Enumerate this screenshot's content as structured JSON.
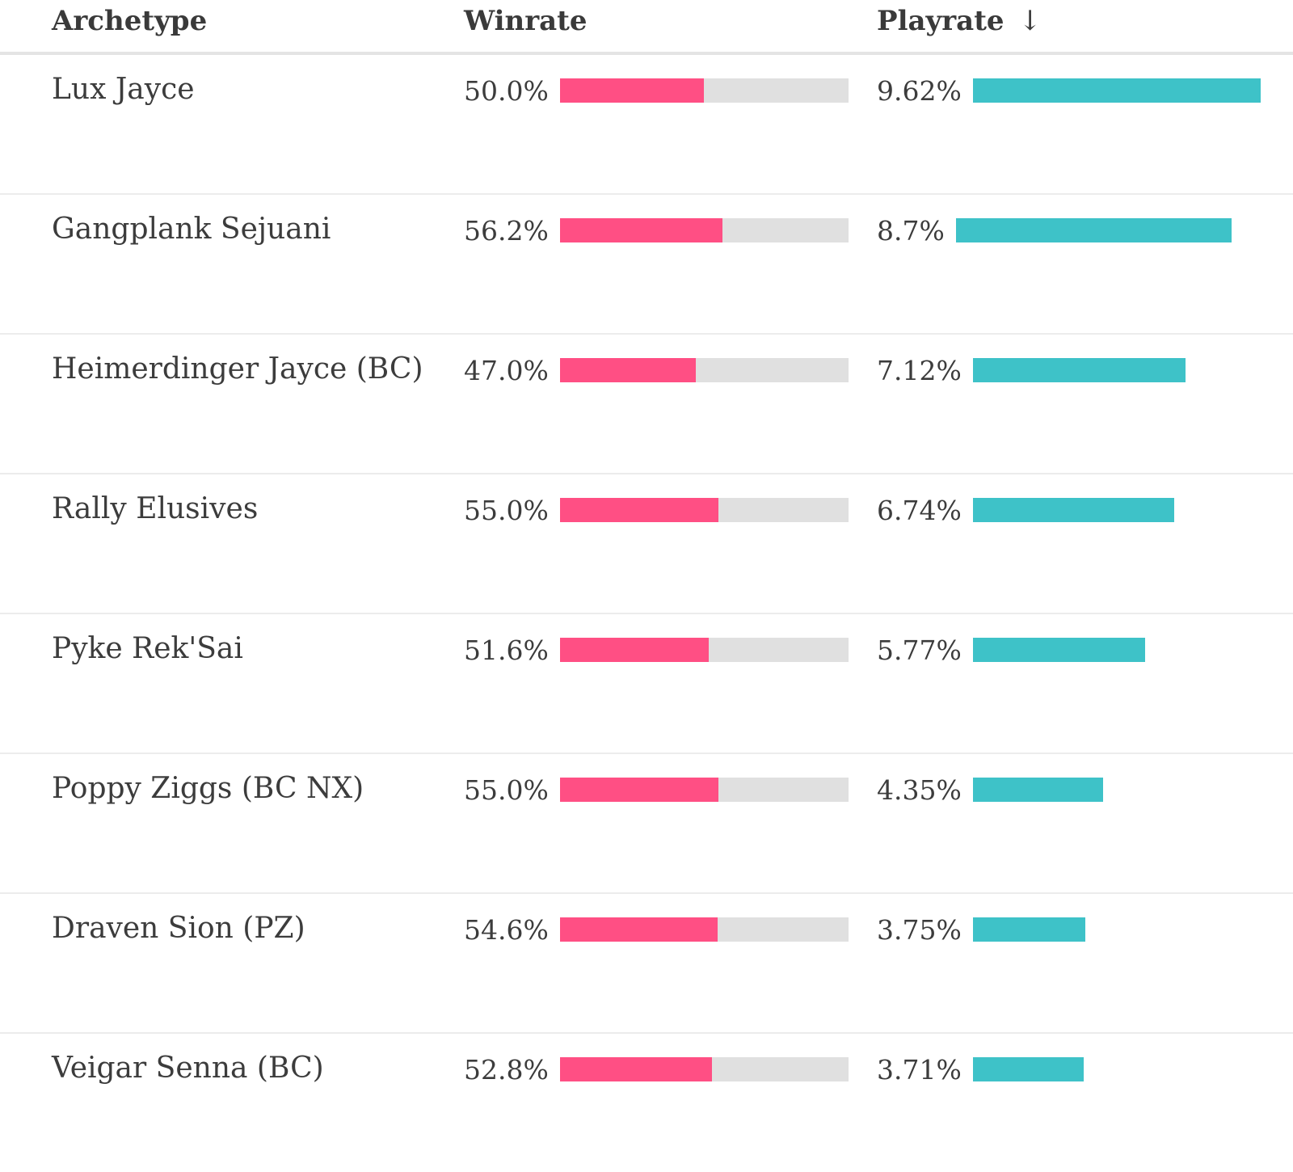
{
  "header": {
    "archetype": "Archetype",
    "winrate": "Winrate",
    "playrate": "Playrate",
    "sort_indicator": "↓"
  },
  "colors": {
    "winrate_bar": "#ff4f84",
    "winrate_track": "#e0e0e0",
    "playrate_bar": "#3ec2c8"
  },
  "playrate_max": 9.62,
  "rows": [
    {
      "name": "Lux Jayce",
      "winrate": "50.0%",
      "winrate_value": 50.0,
      "playrate": "9.62%",
      "playrate_value": 9.62
    },
    {
      "name": "Gangplank Sejuani",
      "winrate": "56.2%",
      "winrate_value": 56.2,
      "playrate": "8.7%",
      "playrate_value": 8.7
    },
    {
      "name": "Heimerdinger Jayce (BC)",
      "winrate": "47.0%",
      "winrate_value": 47.0,
      "playrate": "7.12%",
      "playrate_value": 7.12
    },
    {
      "name": "Rally Elusives",
      "winrate": "55.0%",
      "winrate_value": 55.0,
      "playrate": "6.74%",
      "playrate_value": 6.74
    },
    {
      "name": "Pyke Rek'Sai",
      "winrate": "51.6%",
      "winrate_value": 51.6,
      "playrate": "5.77%",
      "playrate_value": 5.77
    },
    {
      "name": "Poppy Ziggs (BC NX)",
      "winrate": "55.0%",
      "winrate_value": 55.0,
      "playrate": "4.35%",
      "playrate_value": 4.35
    },
    {
      "name": "Draven Sion (PZ)",
      "winrate": "54.6%",
      "winrate_value": 54.6,
      "playrate": "3.75%",
      "playrate_value": 3.75
    },
    {
      "name": "Veigar Senna (BC)",
      "winrate": "52.8%",
      "winrate_value": 52.8,
      "playrate": "3.71%",
      "playrate_value": 3.71
    }
  ]
}
